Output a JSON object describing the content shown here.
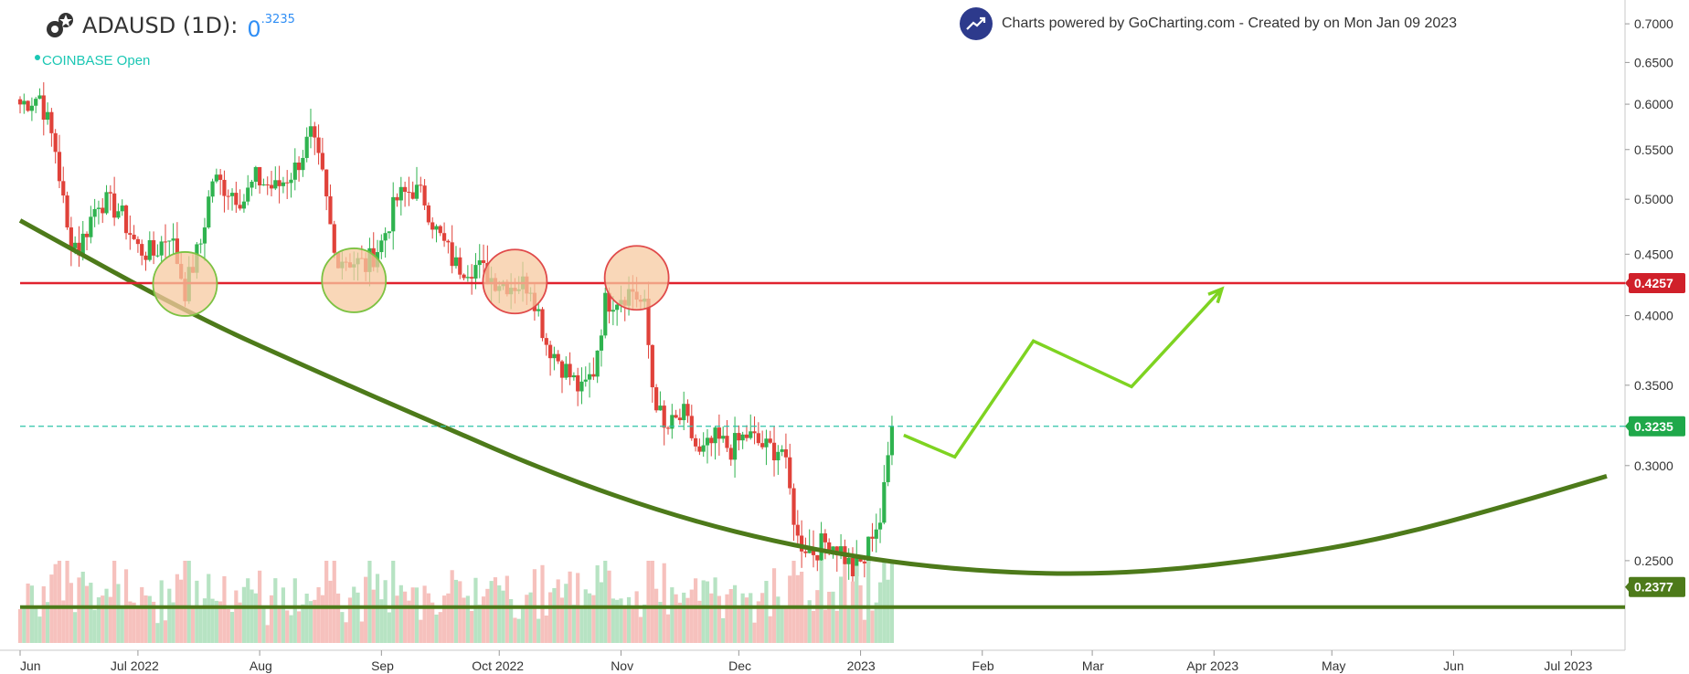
{
  "header": {
    "symbol_title": "ADAUSD (1D):",
    "price_main": "0",
    "price_sup": ".3235",
    "exchange_status": "COINBASE Open",
    "credit_text": "Charts powered by GoCharting.com - Created by  on Mon Jan 09 2023",
    "logo_icon": "gear-star-logo-icon",
    "credit_icon": "trend-up-icon"
  },
  "colors": {
    "up": "#26a69a",
    "up_fill": "#2fb34f",
    "down": "#e0423a",
    "resistance": "#e0222e",
    "support_curve": "#4d7a1a",
    "projection": "#7ed321",
    "current_price_line": "#2ec4a8",
    "circle_green_fill": "#f7c9a0",
    "circle_green_stroke": "#7cc242",
    "circle_red_stroke": "#e04a4a"
  },
  "chart_data": {
    "type": "candlestick",
    "symbol": "ADAUSD",
    "interval": "1D",
    "y_scale": "log",
    "ylim": [
      0.215,
      0.72
    ],
    "x_range": [
      "2022-06-01",
      "2023-07-10"
    ],
    "x_tick_labels": [
      "Jun",
      "Jul 2022",
      "Aug",
      "Sep",
      "Oct 2022",
      "Nov",
      "Dec",
      "2023",
      "Feb",
      "Mar",
      "Apr 2023",
      "May",
      "Jun",
      "Jul 2023"
    ],
    "x_tick_dates": [
      "2022-06-01",
      "2022-07-01",
      "2022-08-01",
      "2022-09-01",
      "2022-10-01",
      "2022-11-01",
      "2022-12-01",
      "2023-01-01",
      "2023-02-01",
      "2023-03-01",
      "2023-04-01",
      "2023-05-01",
      "2023-06-01",
      "2023-07-01"
    ],
    "y_tick_labels": [
      "0.7000",
      "0.6500",
      "0.6000",
      "0.5500",
      "0.5000",
      "0.4500",
      "0.4000",
      "0.3500",
      "0.3000",
      "0.2500"
    ],
    "y_tick_values": [
      0.7,
      0.65,
      0.6,
      0.55,
      0.5,
      0.45,
      0.4,
      0.35,
      0.3,
      0.25
    ],
    "price_badges": [
      {
        "label": "0.4257",
        "value": 0.4257,
        "color": "#d0202a"
      },
      {
        "label": "0.3235",
        "value": 0.3235,
        "color": "#1fa84a"
      },
      {
        "label": "0.2377",
        "value": 0.2377,
        "color": "#4d7a1a"
      }
    ],
    "anchors": [
      [
        "2022-06-01",
        0.6
      ],
      [
        "2022-06-06",
        0.61
      ],
      [
        "2022-06-10",
        0.55
      ],
      [
        "2022-06-13",
        0.47
      ],
      [
        "2022-06-16",
        0.455
      ],
      [
        "2022-06-21",
        0.5
      ],
      [
        "2022-06-26",
        0.49
      ],
      [
        "2022-07-01",
        0.455
      ],
      [
        "2022-07-05",
        0.45
      ],
      [
        "2022-07-09",
        0.47
      ],
      [
        "2022-07-13",
        0.42
      ],
      [
        "2022-07-17",
        0.46
      ],
      [
        "2022-07-20",
        0.52
      ],
      [
        "2022-07-24",
        0.51
      ],
      [
        "2022-07-28",
        0.5
      ],
      [
        "2022-07-31",
        0.52
      ],
      [
        "2022-08-05",
        0.51
      ],
      [
        "2022-08-10",
        0.53
      ],
      [
        "2022-08-14",
        0.565
      ],
      [
        "2022-08-17",
        0.52
      ],
      [
        "2022-08-20",
        0.45
      ],
      [
        "2022-08-24",
        0.445
      ],
      [
        "2022-08-28",
        0.44
      ],
      [
        "2022-09-01",
        0.46
      ],
      [
        "2022-09-05",
        0.5
      ],
      [
        "2022-09-09",
        0.51
      ],
      [
        "2022-09-12",
        0.5
      ],
      [
        "2022-09-15",
        0.47
      ],
      [
        "2022-09-20",
        0.44
      ],
      [
        "2022-09-25",
        0.44
      ],
      [
        "2022-09-29",
        0.43
      ],
      [
        "2022-10-04",
        0.425
      ],
      [
        "2022-10-09",
        0.425
      ],
      [
        "2022-10-13",
        0.38
      ],
      [
        "2022-10-18",
        0.36
      ],
      [
        "2022-10-22",
        0.345
      ],
      [
        "2022-10-25",
        0.36
      ],
      [
        "2022-10-28",
        0.41
      ],
      [
        "2022-10-31",
        0.415
      ],
      [
        "2022-11-04",
        0.42
      ],
      [
        "2022-11-07",
        0.405
      ],
      [
        "2022-11-09",
        0.35
      ],
      [
        "2022-11-12",
        0.32
      ],
      [
        "2022-11-17",
        0.33
      ],
      [
        "2022-11-21",
        0.305
      ],
      [
        "2022-11-25",
        0.315
      ],
      [
        "2022-11-29",
        0.31
      ],
      [
        "2022-12-03",
        0.318
      ],
      [
        "2022-12-08",
        0.31
      ],
      [
        "2022-12-12",
        0.31
      ],
      [
        "2022-12-16",
        0.26
      ],
      [
        "2022-12-20",
        0.255
      ],
      [
        "2022-12-24",
        0.26
      ],
      [
        "2022-12-27",
        0.255
      ],
      [
        "2022-12-30",
        0.245
      ],
      [
        "2023-01-02",
        0.25
      ],
      [
        "2023-01-04",
        0.265
      ],
      [
        "2023-01-06",
        0.27
      ],
      [
        "2023-01-07",
        0.285
      ],
      [
        "2023-01-08",
        0.305
      ],
      [
        "2023-01-09",
        0.3235
      ]
    ],
    "resistance_level": 0.4257,
    "current_price": 0.3235,
    "support_bottom_level": 0.2287,
    "support_curve": [
      [
        "2022-06-01",
        0.48
      ],
      [
        "2022-07-15",
        0.4
      ],
      [
        "2022-08-15",
        0.36
      ],
      [
        "2022-09-15",
        0.325
      ],
      [
        "2022-10-15",
        0.295
      ],
      [
        "2022-11-15",
        0.272
      ],
      [
        "2022-12-15",
        0.257
      ],
      [
        "2023-01-15",
        0.2475
      ],
      [
        "2023-02-15",
        0.2435
      ],
      [
        "2023-03-15",
        0.2445
      ],
      [
        "2023-04-15",
        0.251
      ],
      [
        "2023-05-15",
        0.261
      ],
      [
        "2023-06-15",
        0.278
      ],
      [
        "2023-07-10",
        0.294
      ]
    ],
    "projection_path": [
      [
        "2023-01-12",
        0.318
      ],
      [
        "2023-01-25",
        0.305
      ],
      [
        "2023-02-14",
        0.381
      ],
      [
        "2023-03-11",
        0.349
      ],
      [
        "2023-04-03",
        0.421
      ]
    ],
    "highlight_circles": [
      {
        "date": "2022-07-13",
        "value": 0.425,
        "style": "green"
      },
      {
        "date": "2022-08-25",
        "value": 0.428,
        "style": "green"
      },
      {
        "date": "2022-10-05",
        "value": 0.427,
        "style": "red"
      },
      {
        "date": "2022-11-05",
        "value": 0.43,
        "style": "red"
      }
    ]
  }
}
